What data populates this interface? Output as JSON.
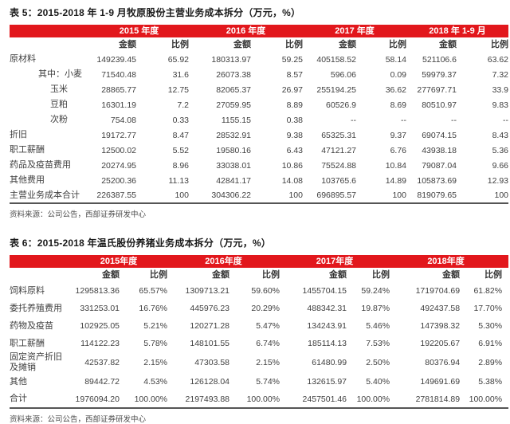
{
  "colors": {
    "accent": "#e2171c",
    "band_text": "#ffffff",
    "body_text": "#3f3f3f",
    "title_text": "#1a1a1a",
    "source_text": "#4d4d4d",
    "divider": "#555555"
  },
  "table5": {
    "title": "表 5：2015-2018 年 1-9 月牧原股份主营业务成本拆分（万元，%）",
    "years": [
      "2015 年度",
      "2016 年度",
      "2017 年度",
      "2018 年 1-9 月"
    ],
    "sub_headers": [
      "金额",
      "比例",
      "金额",
      "比例",
      "金额",
      "比例",
      "金额",
      "比例"
    ],
    "rows": [
      {
        "label": "原材料",
        "indent": 0,
        "cells": [
          "149239.45",
          "65.92",
          "180313.97",
          "59.25",
          "405158.52",
          "58.14",
          "521106.6",
          "63.62"
        ]
      },
      {
        "label": "其中：小麦",
        "indent": 1,
        "cells": [
          "71540.48",
          "31.6",
          "26073.38",
          "8.57",
          "596.06",
          "0.09",
          "59979.37",
          "7.32"
        ]
      },
      {
        "label": "玉米",
        "indent": 2,
        "cells": [
          "28865.77",
          "12.75",
          "82065.37",
          "26.97",
          "255194.25",
          "36.62",
          "277697.71",
          "33.9"
        ]
      },
      {
        "label": "豆粕",
        "indent": 2,
        "cells": [
          "16301.19",
          "7.2",
          "27059.95",
          "8.89",
          "60526.9",
          "8.69",
          "80510.97",
          "9.83"
        ]
      },
      {
        "label": "次粉",
        "indent": 2,
        "cells": [
          "754.08",
          "0.33",
          "1155.15",
          "0.38",
          "--",
          "--",
          "--",
          "--"
        ]
      },
      {
        "label": "折旧",
        "indent": 0,
        "cells": [
          "19172.77",
          "8.47",
          "28532.91",
          "9.38",
          "65325.31",
          "9.37",
          "69074.15",
          "8.43"
        ]
      },
      {
        "label": "职工薪酬",
        "indent": 0,
        "cells": [
          "12500.02",
          "5.52",
          "19580.16",
          "6.43",
          "47121.27",
          "6.76",
          "43938.18",
          "5.36"
        ]
      },
      {
        "label": "药品及疫苗费用",
        "indent": 0,
        "cells": [
          "20274.95",
          "8.96",
          "33038.01",
          "10.86",
          "75524.88",
          "10.84",
          "79087.04",
          "9.66"
        ]
      },
      {
        "label": "其他费用",
        "indent": 0,
        "cells": [
          "25200.36",
          "11.13",
          "42841.17",
          "14.08",
          "103765.6",
          "14.89",
          "105873.69",
          "12.93"
        ]
      },
      {
        "label": "主营业务成本合计",
        "indent": 0,
        "cells": [
          "226387.55",
          "100",
          "304306.22",
          "100",
          "696895.57",
          "100",
          "819079.65",
          "100"
        ]
      }
    ],
    "source": "资料来源：公司公告，西部证券研发中心"
  },
  "table6": {
    "title": "表 6：2015-2018 年温氏股份养猪业务成本拆分（万元，%）",
    "years": [
      "2015年度",
      "2016年度",
      "2017年度",
      "2018年度"
    ],
    "sub_headers": [
      "金额",
      "比例",
      "金额",
      "比例",
      "金额",
      "比例",
      "金额",
      "比例"
    ],
    "rows": [
      {
        "label": "饲料原料",
        "indent": 0,
        "cells": [
          "1295813.36",
          "65.57%",
          "1309713.21",
          "59.60%",
          "1455704.15",
          "59.24%",
          "1719704.69",
          "61.82%"
        ]
      },
      {
        "label": "委托养殖费用",
        "indent": 0,
        "cells": [
          "331253.01",
          "16.76%",
          "445976.23",
          "20.29%",
          "488342.31",
          "19.87%",
          "492437.58",
          "17.70%"
        ]
      },
      {
        "label": "药物及疫苗",
        "indent": 0,
        "cells": [
          "102925.05",
          "5.21%",
          "120271.28",
          "5.47%",
          "134243.91",
          "5.46%",
          "147398.32",
          "5.30%"
        ]
      },
      {
        "label": "职工薪酬",
        "indent": 0,
        "cells": [
          "114122.23",
          "5.78%",
          "148101.55",
          "6.74%",
          "185114.13",
          "7.53%",
          "192205.67",
          "6.91%"
        ]
      },
      {
        "label": "固定资产折旧及摊销",
        "indent": 0,
        "cells": [
          "42537.82",
          "2.15%",
          "47303.58",
          "2.15%",
          "61480.99",
          "2.50%",
          "80376.94",
          "2.89%"
        ]
      },
      {
        "label": "其他",
        "indent": 0,
        "cells": [
          "89442.72",
          "4.53%",
          "126128.04",
          "5.74%",
          "132615.97",
          "5.40%",
          "149691.69",
          "5.38%"
        ]
      },
      {
        "label": "合计",
        "indent": 0,
        "cells": [
          "1976094.20",
          "100.00%",
          "2197493.88",
          "100.00%",
          "2457501.46",
          "100.00%",
          "2781814.89",
          "100.00%"
        ]
      }
    ],
    "source": "资料来源：公司公告，西部证券研发中心"
  }
}
